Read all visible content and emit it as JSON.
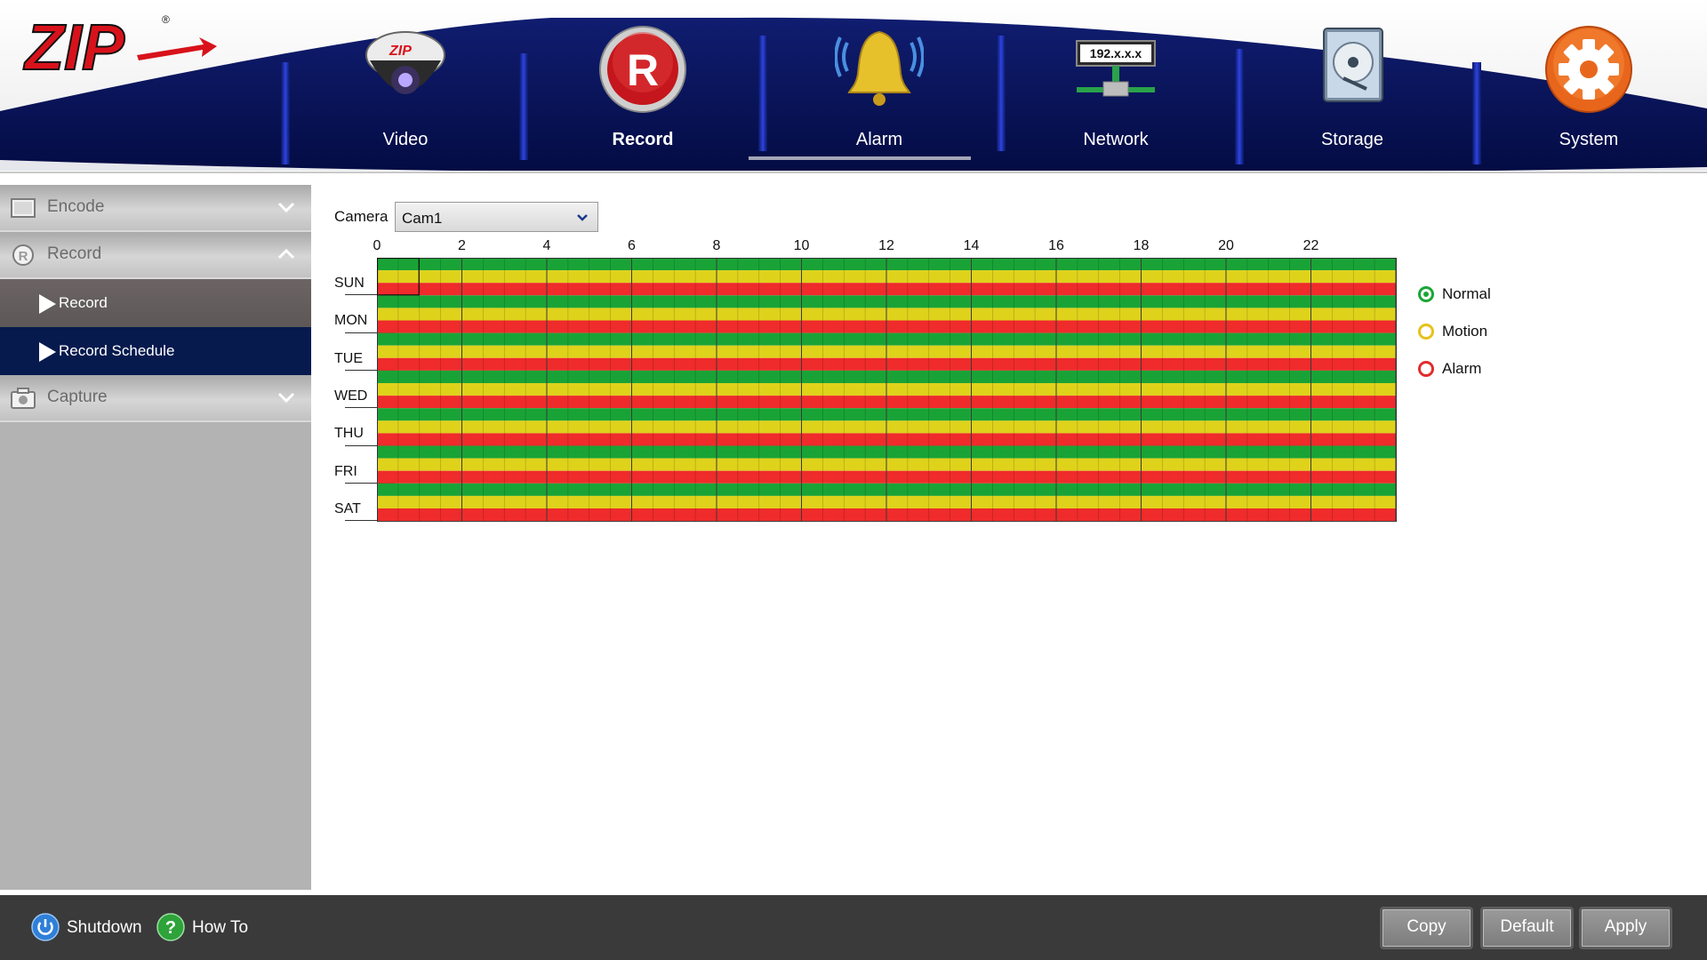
{
  "header": {
    "nav": [
      {
        "label": "Video",
        "icon": "security-camera-icon"
      },
      {
        "label": "Record",
        "icon": "record-icon",
        "active": true
      },
      {
        "label": "Alarm",
        "icon": "alarm-bell-icon"
      },
      {
        "label": "Network",
        "icon": "network-icon",
        "badge": "192.x.x.x"
      },
      {
        "label": "Storage",
        "icon": "hard-drive-icon"
      },
      {
        "label": "System",
        "icon": "gear-icon"
      }
    ],
    "colors": {
      "navy": "#06104f",
      "accent_blue": "#1a2fd0"
    }
  },
  "sidebar": {
    "encode_label": "Encode",
    "record_label": "Record",
    "record_items": [
      {
        "label": "Record"
      },
      {
        "label": "Record Schedule",
        "selected": true
      }
    ],
    "capture_label": "Capture"
  },
  "schedule": {
    "camera_label": "Camera",
    "camera_value": "Cam1",
    "hour_labels": [
      "0",
      "2",
      "4",
      "6",
      "8",
      "10",
      "12",
      "14",
      "16",
      "18",
      "20",
      "22"
    ],
    "days": [
      "SUN",
      "MON",
      "TUE",
      "WED",
      "THU",
      "FRI",
      "SAT"
    ],
    "hours_per_day": 24,
    "legend": [
      {
        "label": "Normal",
        "color": "#1aa637",
        "selected": true
      },
      {
        "label": "Motion",
        "color": "#e8c11a",
        "selected": false
      },
      {
        "label": "Alarm",
        "color": "#e22b2b",
        "selected": false
      }
    ],
    "row_colors": [
      "#19a336",
      "#dfd21b",
      "#ef2b2b"
    ]
  },
  "footer": {
    "shutdown_label": "Shutdown",
    "howto_label": "How To",
    "copy_label": "Copy",
    "default_label": "Default",
    "apply_label": "Apply"
  }
}
